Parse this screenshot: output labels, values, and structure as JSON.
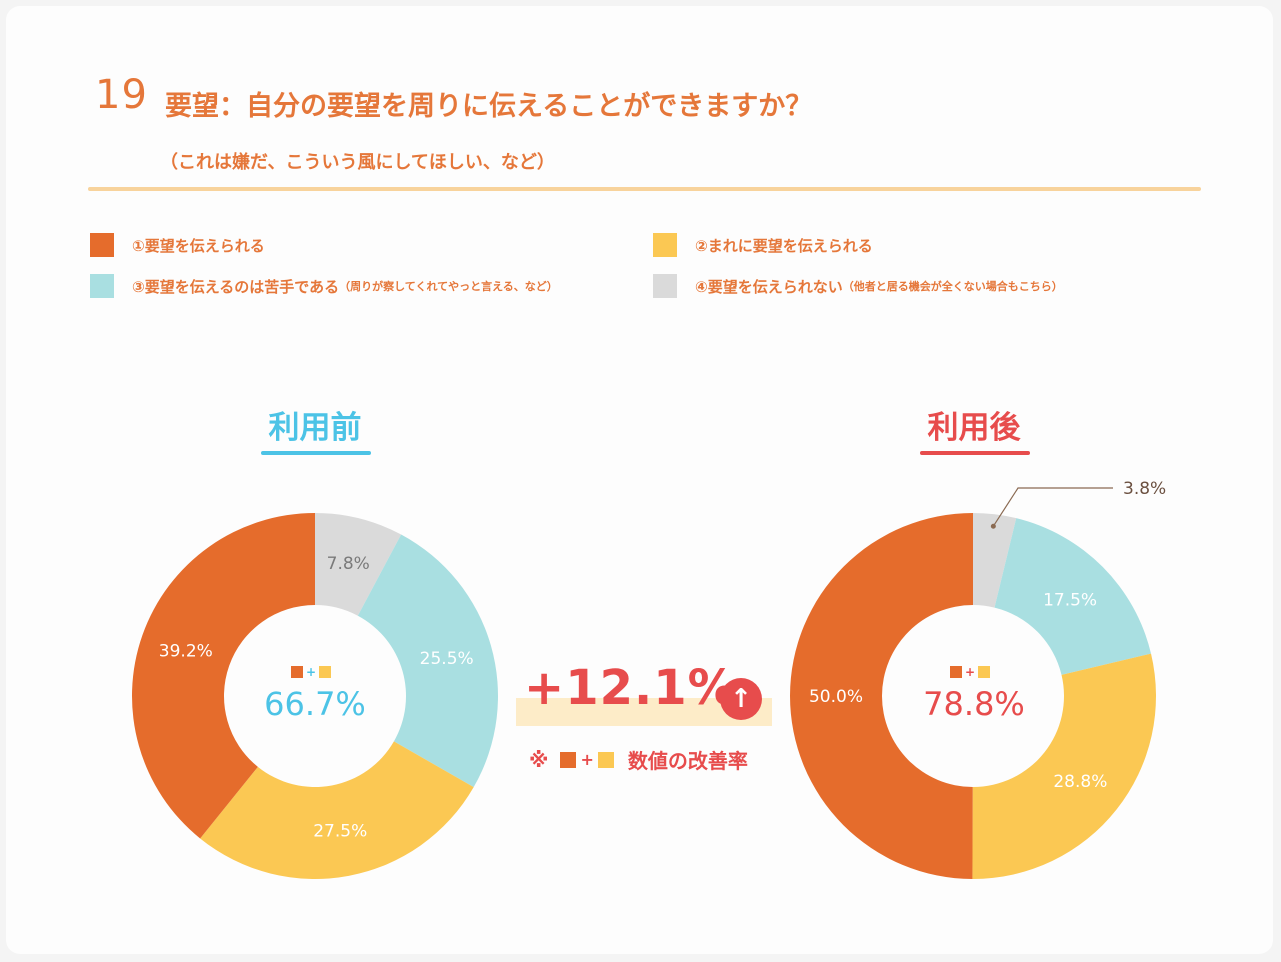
{
  "question": {
    "number": "19",
    "title": "要望：自分の要望を周りに伝えることができますか？",
    "subtitle": "（これは嫌だ、こういう風にしてほしい、など）"
  },
  "colors": {
    "orange": "#e56c2c",
    "yellow": "#fbc853",
    "cyan": "#a9dfe1",
    "gray": "#dadada",
    "before_accent": "#4cc3e6",
    "after_accent": "#e74c4c",
    "text_orange": "#e5773a"
  },
  "legend": [
    {
      "label": "①要望を伝えられる",
      "note": "",
      "color": "#e56c2c"
    },
    {
      "label": "②まれに要望を伝えられる",
      "note": "",
      "color": "#fbc853"
    },
    {
      "label": "③要望を伝えるのは苦手である",
      "note": "（周りが察してくれてやっと言える、など）",
      "color": "#a9dfe1"
    },
    {
      "label": "④要望を伝えられない",
      "note": "（他者と居る機会が全くない場合もこちら）",
      "color": "#dadada"
    }
  ],
  "before": {
    "title": "利用前",
    "center_plus": "+",
    "center_value": "66.7%"
  },
  "after": {
    "title": "利用後",
    "center_plus": "+",
    "center_value": "78.8%"
  },
  "improvement": {
    "value": "+12.1%",
    "arrow": "↑",
    "note_prefix": "※",
    "note_plus": "+",
    "note_text": "数値の改善率"
  },
  "chart_data": [
    {
      "type": "pie",
      "title": "利用前",
      "categories": [
        "①要望を伝えられる",
        "②まれに要望を伝えられる",
        "③要望を伝えるのは苦手である",
        "④要望を伝えられない"
      ],
      "values": [
        39.2,
        27.5,
        25.5,
        7.8
      ],
      "labels": [
        "39.2%",
        "27.5%",
        "25.5%",
        "7.8%"
      ],
      "colors": [
        "#e56c2c",
        "#fbc853",
        "#a9dfe1",
        "#dadada"
      ]
    },
    {
      "type": "pie",
      "title": "利用後",
      "categories": [
        "①要望を伝えられる",
        "②まれに要望を伝えられる",
        "③要望を伝えるのは苦手である",
        "④要望を伝えられない"
      ],
      "values": [
        50.0,
        28.8,
        17.5,
        3.8
      ],
      "labels": [
        "50.0%",
        "28.8%",
        "17.5%",
        "3.8%"
      ],
      "colors": [
        "#e56c2c",
        "#fbc853",
        "#a9dfe1",
        "#dadada"
      ]
    }
  ]
}
